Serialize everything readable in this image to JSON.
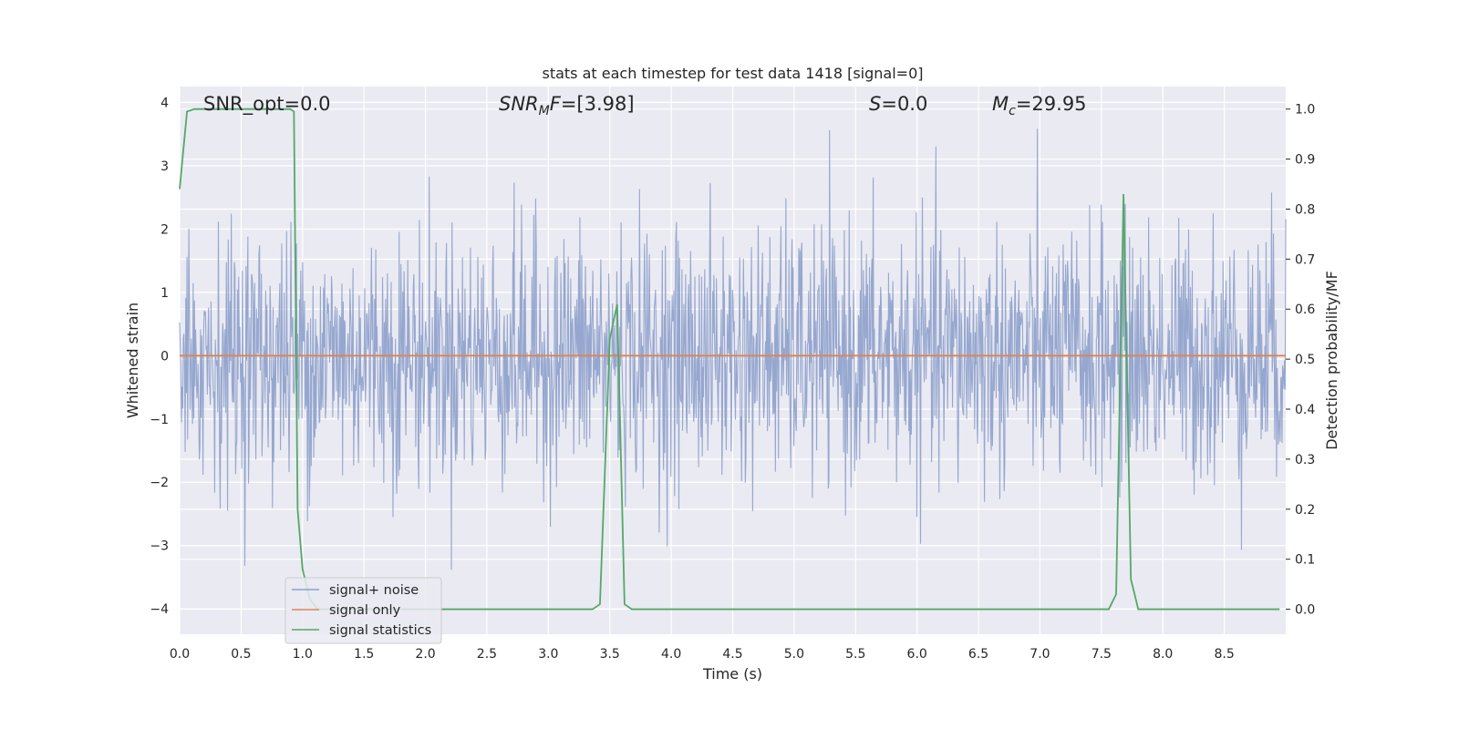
{
  "chart_data": {
    "type": "line",
    "title": "stats at each timestep for test data 1418 [signal=0]",
    "xlabel": "Time (s)",
    "ylabel": "Whitened strain",
    "y2label": "Detection probability/MF",
    "xlim": [
      0.0,
      9.0
    ],
    "ylim": [
      -4.4,
      4.25
    ],
    "y2lim": [
      -0.05,
      1.045
    ],
    "xticks": [
      "0.0",
      "0.5",
      "1.0",
      "1.5",
      "2.0",
      "2.5",
      "3.0",
      "3.5",
      "4.0",
      "4.5",
      "5.0",
      "5.5",
      "6.0",
      "6.5",
      "7.0",
      "7.5",
      "8.0",
      "8.5"
    ],
    "yticks": [
      "4",
      "3",
      "2",
      "1",
      "0",
      "−1",
      "−2",
      "−3",
      "−4"
    ],
    "y2ticks": [
      "1.0",
      "0.9",
      "0.8",
      "0.7",
      "0.6",
      "0.5",
      "0.4",
      "0.3",
      "0.2",
      "0.1",
      "0.0"
    ],
    "grid": true,
    "legend_position": "lower-left",
    "annotations": {
      "snr_opt": "SNR_opt=0.0",
      "snr_mf_main": "SNR",
      "snr_mf_sub": "M",
      "snr_mf_tail": "F",
      "snr_mf_value": "=[3.98]",
      "s_main": "S",
      "s_value": "=0.0",
      "mc_main": "M",
      "mc_sub": "c",
      "mc_value": "=29.95"
    },
    "series": [
      {
        "name": "signal+ noise",
        "color": "#8da0cb",
        "description_range": [
          -4.0,
          3.87
        ],
        "noise_sigma": 1.0,
        "num_samples": 1800
      },
      {
        "name": "signal only",
        "color": "#dd8452",
        "x": [
          0.0,
          9.0
        ],
        "y": [
          0.0,
          0.0
        ]
      },
      {
        "name": "signal statistics",
        "color": "#55a868",
        "x": [
          0.0,
          0.06,
          0.12,
          0.18,
          0.24,
          0.3,
          0.36,
          0.42,
          0.48,
          0.54,
          0.6,
          0.66,
          0.72,
          0.78,
          0.84,
          0.9,
          0.93,
          0.96,
          1.0,
          1.06,
          1.12,
          1.2,
          1.5,
          2.0,
          2.5,
          3.0,
          3.36,
          3.42,
          3.5,
          3.56,
          3.62,
          3.68,
          3.75,
          4.0,
          5.0,
          6.0,
          7.0,
          7.5,
          7.56,
          7.62,
          7.68,
          7.74,
          7.8,
          7.86,
          8.0,
          8.5,
          8.95
        ],
        "y": [
          0.84,
          0.995,
          1.0,
          1.0,
          1.0,
          1.0,
          1.0,
          1.0,
          1.0,
          1.0,
          1.0,
          1.0,
          1.0,
          1.0,
          1.0,
          1.0,
          0.995,
          0.2,
          0.08,
          0.02,
          0.0,
          0.0,
          0.0,
          0.0,
          0.0,
          0.0,
          0.0,
          0.01,
          0.54,
          0.61,
          0.01,
          0.0,
          0.0,
          0.0,
          0.0,
          0.0,
          0.0,
          0.0,
          0.0,
          0.03,
          0.83,
          0.06,
          0.0,
          0.0,
          0.0,
          0.0,
          0.0
        ]
      }
    ]
  }
}
